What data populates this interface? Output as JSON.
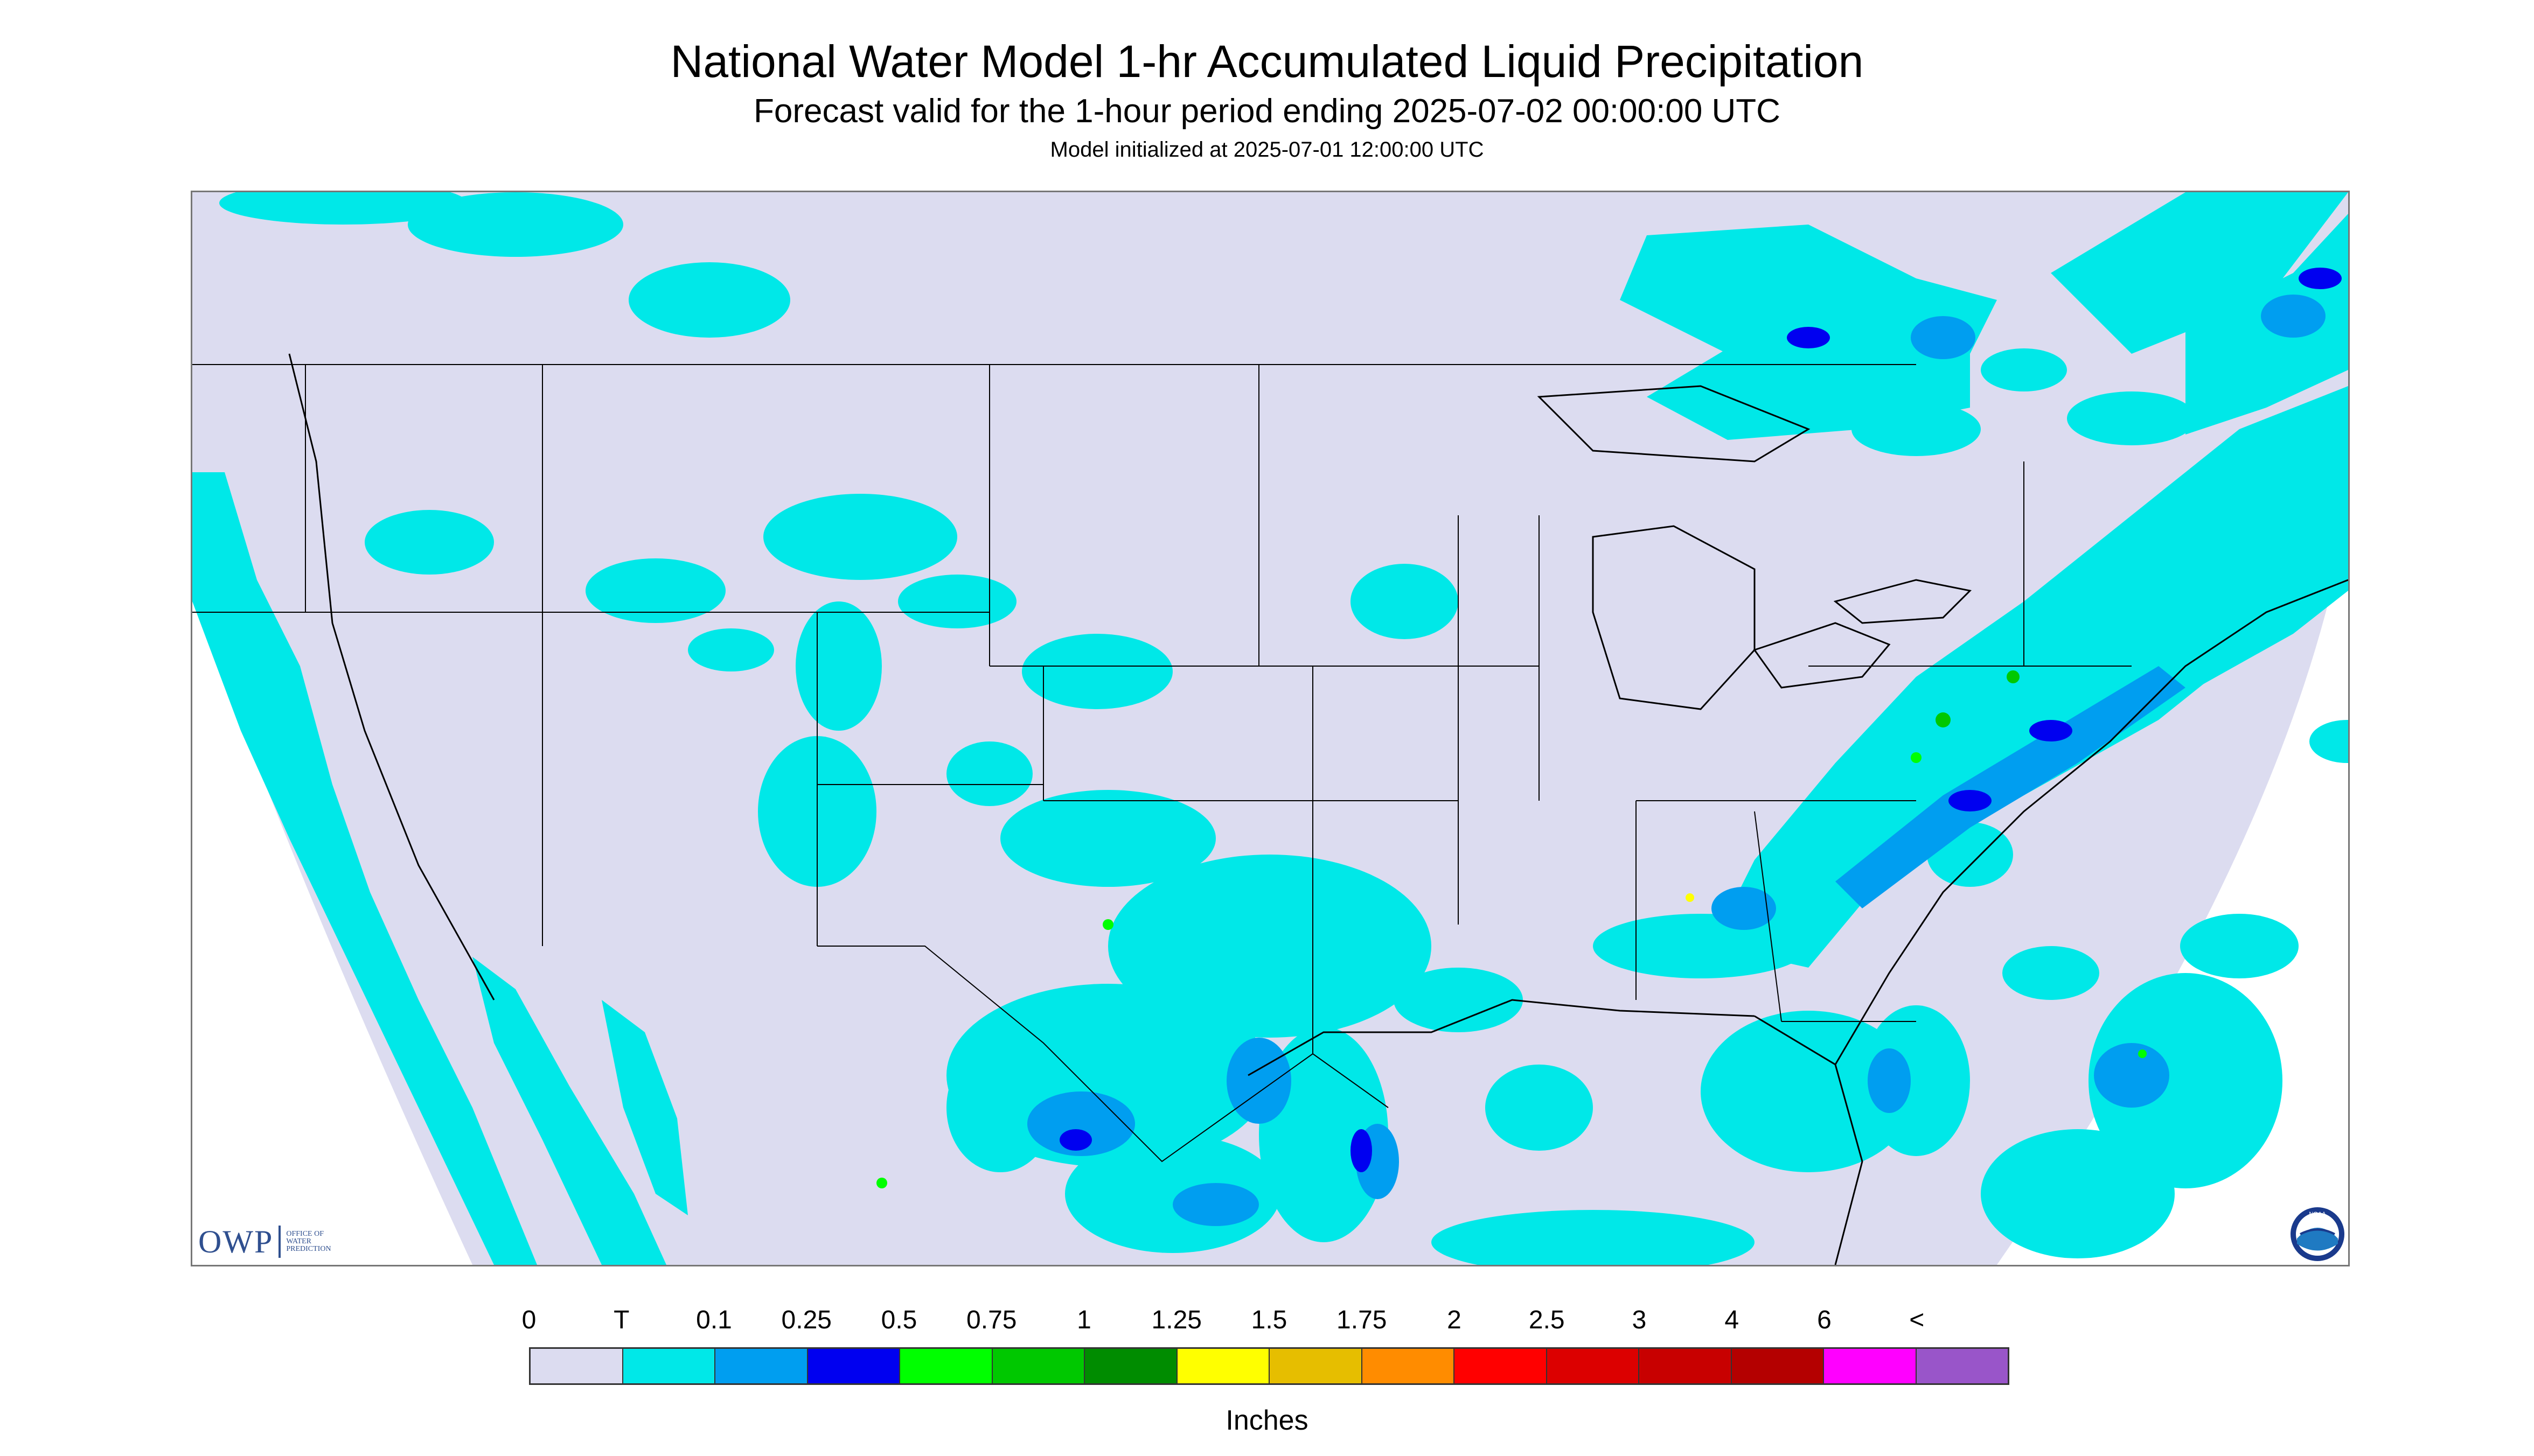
{
  "header": {
    "title": "National Water Model 1-hr Accumulated Liquid Precipitation",
    "subtitle": "Forecast valid for the 1-hour period ending 2025-07-02 00:00:00 UTC",
    "init_line": "Model initialized at 2025-07-01 12:00:00 UTC"
  },
  "logos": {
    "owp": {
      "text": "OWP",
      "subtext": "OFFICE OF\nWATER\nPREDICTION"
    },
    "noaa": {
      "text": "NOAA",
      "icon": "noaa-seal-icon"
    }
  },
  "map": {
    "background": "#dcdcf0",
    "outside_domain": "#ffffff",
    "region": "contiguous-united-states",
    "boundary_color": "#000000"
  },
  "legend": {
    "units": "Inches",
    "labels": [
      "0",
      "T",
      "0.1",
      "0.25",
      "0.5",
      "0.75",
      "1",
      "1.25",
      "1.5",
      "1.75",
      "2",
      "2.5",
      "3",
      "4",
      "6",
      "<"
    ],
    "colors": [
      "#dcdcf0",
      "#00e8e8",
      "#009ef0",
      "#0000f0",
      "#00ff00",
      "#00c800",
      "#008c00",
      "#ffff00",
      "#e6be00",
      "#ff8c00",
      "#ff0000",
      "#dc0000",
      "#c80000",
      "#b40000",
      "#ff00ff",
      "#9955c9"
    ]
  }
}
